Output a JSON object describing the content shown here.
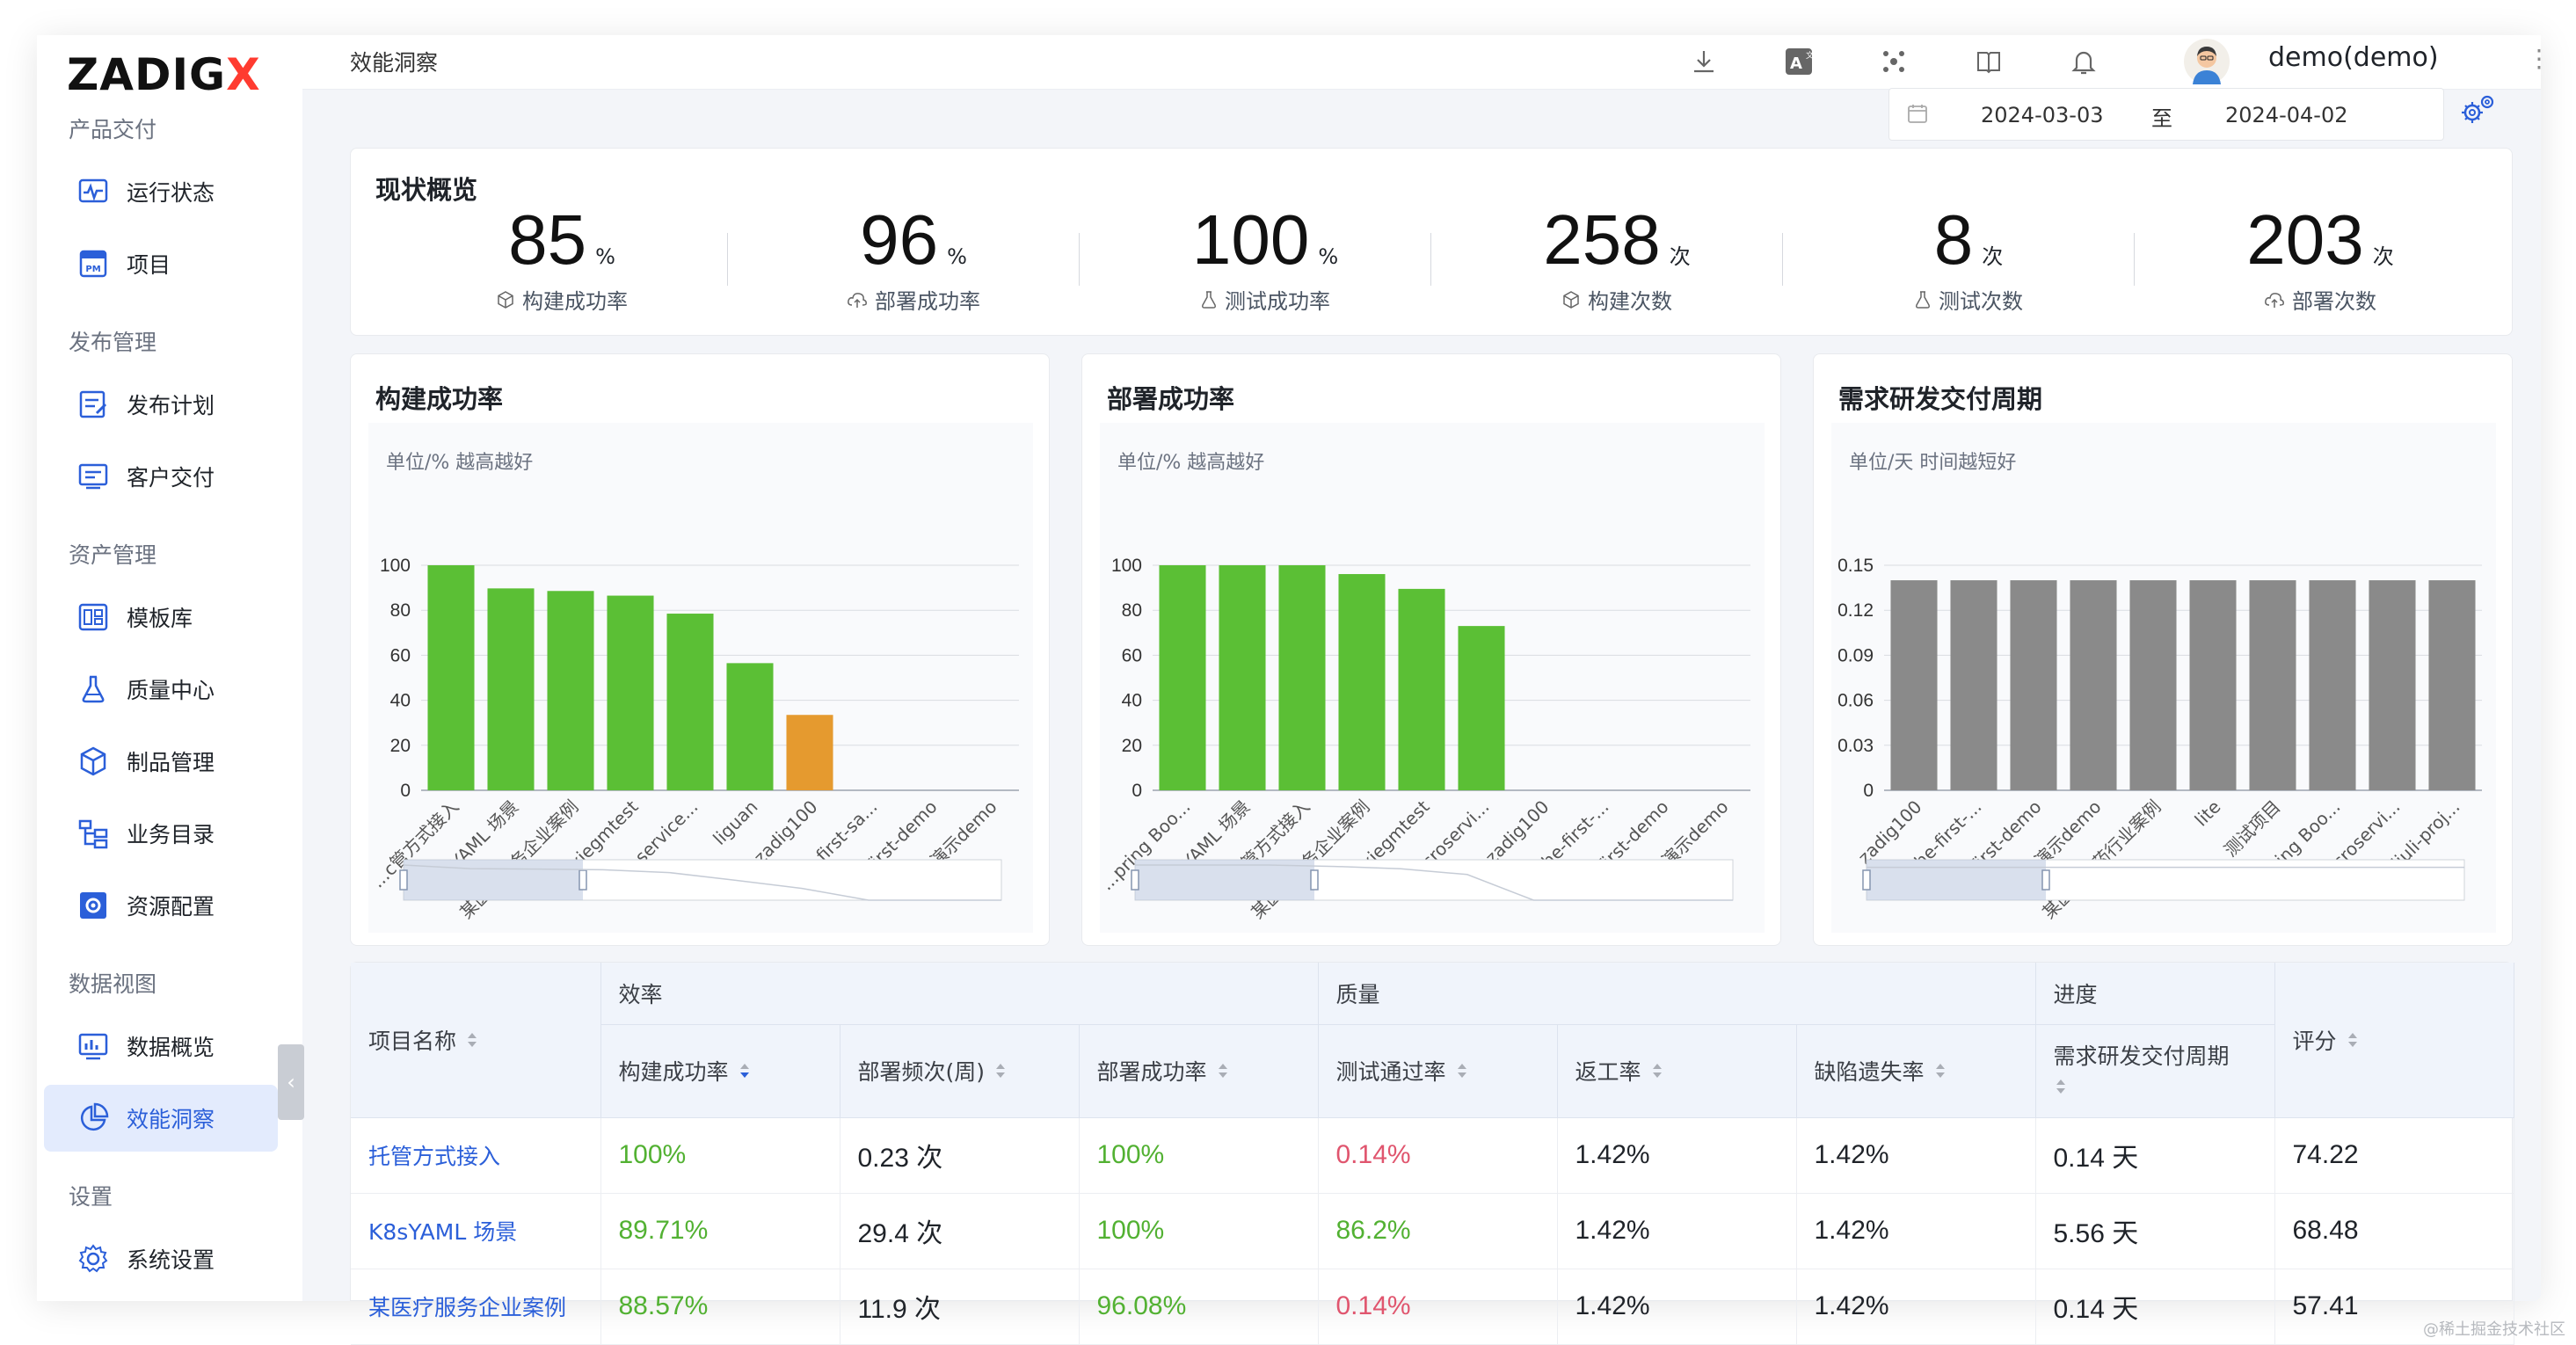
{
  "brand": {
    "logo_text": "ZADIG",
    "logo_x": "X"
  },
  "sidebar": {
    "groups": [
      {
        "label": "产品交付",
        "items": [
          {
            "label": "运行状态",
            "icon": "monitor-pulse-icon"
          },
          {
            "label": "项目",
            "icon": "project-pm-icon"
          }
        ]
      },
      {
        "label": "发布管理",
        "items": [
          {
            "label": "发布计划",
            "icon": "release-plan-icon"
          },
          {
            "label": "客户交付",
            "icon": "customer-delivery-icon"
          }
        ]
      },
      {
        "label": "资产管理",
        "items": [
          {
            "label": "模板库",
            "icon": "template-library-icon"
          },
          {
            "label": "质量中心",
            "icon": "flask-icon"
          },
          {
            "label": "制品管理",
            "icon": "package-icon"
          },
          {
            "label": "业务目录",
            "icon": "catalog-icon"
          },
          {
            "label": "资源配置",
            "icon": "resource-config-icon"
          }
        ]
      },
      {
        "label": "数据视图",
        "items": [
          {
            "label": "数据概览",
            "icon": "chart-overview-icon"
          },
          {
            "label": "效能洞察",
            "icon": "pie-chart-icon",
            "active": true
          }
        ]
      },
      {
        "label": "设置",
        "items": [
          {
            "label": "系统设置",
            "icon": "gear-icon"
          }
        ]
      }
    ]
  },
  "header": {
    "breadcrumb": "效能洞察",
    "user": "demo(demo)",
    "icons": [
      "download-icon",
      "translate-icon",
      "cluster-icon",
      "docs-book-icon",
      "bell-icon"
    ]
  },
  "date_range": {
    "start": "2024-03-03",
    "separator": "至",
    "end": "2024-04-02"
  },
  "overview": {
    "title": "现状概览",
    "stats": [
      {
        "value": "85",
        "unit": "%",
        "label": "构建成功率",
        "icon": "cube-icon"
      },
      {
        "value": "96",
        "unit": "%",
        "label": "部署成功率",
        "icon": "cloud-upload-icon"
      },
      {
        "value": "100",
        "unit": "%",
        "label": "测试成功率",
        "icon": "flask-icon"
      },
      {
        "value": "258",
        "unit": "次",
        "label": "构建次数",
        "icon": "cube-icon"
      },
      {
        "value": "8",
        "unit": "次",
        "label": "测试次数",
        "icon": "flask-icon"
      },
      {
        "value": "203",
        "unit": "次",
        "label": "部署次数",
        "icon": "cloud-upload-icon"
      }
    ]
  },
  "chart_data": [
    {
      "type": "bar",
      "title": "构建成功率",
      "subtitle": "单位/% 越高越好",
      "ylim": [
        0,
        100
      ],
      "yticks": [
        "0",
        "20",
        "40",
        "60",
        "80",
        "100"
      ],
      "categories": [
        "托管方式接入",
        "K8sYAML 场景",
        "某医疗服务企业案例",
        "xiegmtest",
        "microservice...",
        "liguan",
        "zadig100",
        "the-first-sa...",
        "first-demo",
        "项目演示demo"
      ],
      "tick_labels": [
        "...c管方式接入",
        "K8sYAML 场景",
        "某医疗服务企业案例",
        "xiegmtest",
        "microservice...",
        "liguan",
        "zadig100",
        "the-first-sa...",
        "first-demo",
        "项目演示demo"
      ],
      "values": [
        100,
        89.71,
        88.57,
        86.5,
        78.5,
        56.5,
        33.5,
        0,
        0,
        0
      ],
      "colors": [
        "#5bbf35",
        "#5bbf35",
        "#5bbf35",
        "#5bbf35",
        "#5bbf35",
        "#5bbf35",
        "#e59a2f",
        "#5bbf35",
        "#5bbf35",
        "#5bbf35"
      ],
      "zoom": [
        0,
        0.3
      ]
    },
    {
      "type": "bar",
      "title": "部署成功率",
      "subtitle": "单位/% 越高越好",
      "ylim": [
        0,
        100
      ],
      "yticks": [
        "0",
        "20",
        "40",
        "60",
        "80",
        "100"
      ],
      "categories": [
        "Spring Boo...",
        "K8sYAML 场景",
        "托管方式接入",
        "某医疗服务企业案例",
        "xiegmtest",
        "microservi...",
        "zadig100",
        "the-first-...",
        "first-demo",
        "项目演示demo"
      ],
      "tick_labels": [
        "...pring Boo...",
        "K8sYAML 场景",
        "托管方式接入",
        "某医疗服务企业案例",
        "xiegmtest",
        "microservi...",
        "zadig100",
        "the-first-...",
        "first-demo",
        "项目演示demo"
      ],
      "values": [
        100,
        100,
        100,
        96.08,
        89.5,
        73,
        0,
        0,
        0,
        0
      ],
      "colors": [
        "#5bbf35",
        "#5bbf35",
        "#5bbf35",
        "#5bbf35",
        "#5bbf35",
        "#5bbf35",
        "#5bbf35",
        "#5bbf35",
        "#5bbf35",
        "#5bbf35"
      ],
      "zoom": [
        0,
        0.3
      ]
    },
    {
      "type": "bar",
      "title": "需求研发交付周期",
      "subtitle": "单位/天 时间越短好",
      "ylim": [
        0,
        0.15
      ],
      "yticks": [
        "0",
        "0.03",
        "0.06",
        "0.09",
        "0.12",
        "0.15"
      ],
      "categories": [
        "zadig100",
        "the-first-...",
        "first-demo",
        "项目演示demo",
        "某医疗医药行业案例",
        "lite",
        "测试项目",
        "Spring Boo...",
        "microservi...",
        "liuli-proj..."
      ],
      "tick_labels": [
        "zadig100",
        "the-first-...",
        "first-demo",
        "项目演示demo",
        "某医疗医药行业案例",
        "lite",
        "测试项目",
        "Spring Boo...",
        "microservi...",
        "liuli-proj..."
      ],
      "values": [
        0.14,
        0.14,
        0.14,
        0.14,
        0.14,
        0.14,
        0.14,
        0.14,
        0.14,
        0.14
      ],
      "colors": [
        "#8a8a8a",
        "#8a8a8a",
        "#8a8a8a",
        "#8a8a8a",
        "#8a8a8a",
        "#8a8a8a",
        "#8a8a8a",
        "#8a8a8a",
        "#8a8a8a",
        "#8a8a8a"
      ],
      "zoom": [
        0,
        0.3
      ]
    }
  ],
  "table": {
    "col_project": "项目名称",
    "group_efficiency": "效率",
    "group_quality": "质量",
    "group_progress": "进度",
    "col_score": "评分",
    "columns": [
      "构建成功率",
      "部署频次(周)",
      "部署成功率",
      "测试通过率",
      "返工率",
      "缺陷遗失率",
      "需求研发交付周期"
    ],
    "rows": [
      {
        "project": "托管方式接入",
        "build": "100%",
        "freq": "0.23 次",
        "deploy": "100%",
        "test": "0.14%",
        "rework": "1.42%",
        "defect": "1.42%",
        "cycle": "0.14 天",
        "score": "74.22"
      },
      {
        "project": "K8sYAML 场景",
        "build": "89.71%",
        "freq": "29.4 次",
        "deploy": "100%",
        "test": "86.2%",
        "rework": "1.42%",
        "defect": "1.42%",
        "cycle": "5.56 天",
        "score": "68.48"
      },
      {
        "project": "某医疗服务企业案例",
        "build": "88.57%",
        "freq": "11.9 次",
        "deploy": "96.08%",
        "test": "0.14%",
        "rework": "1.42%",
        "defect": "1.42%",
        "cycle": "0.14 天",
        "score": "57.41"
      }
    ]
  },
  "watermark": "@稀土掘金技术社区",
  "colors": {
    "accent": "#2b5fd9",
    "good": "#52b132",
    "bad": "#e0556e",
    "warn": "#e59a2f",
    "neutral_bar": "#8a8a8a"
  }
}
